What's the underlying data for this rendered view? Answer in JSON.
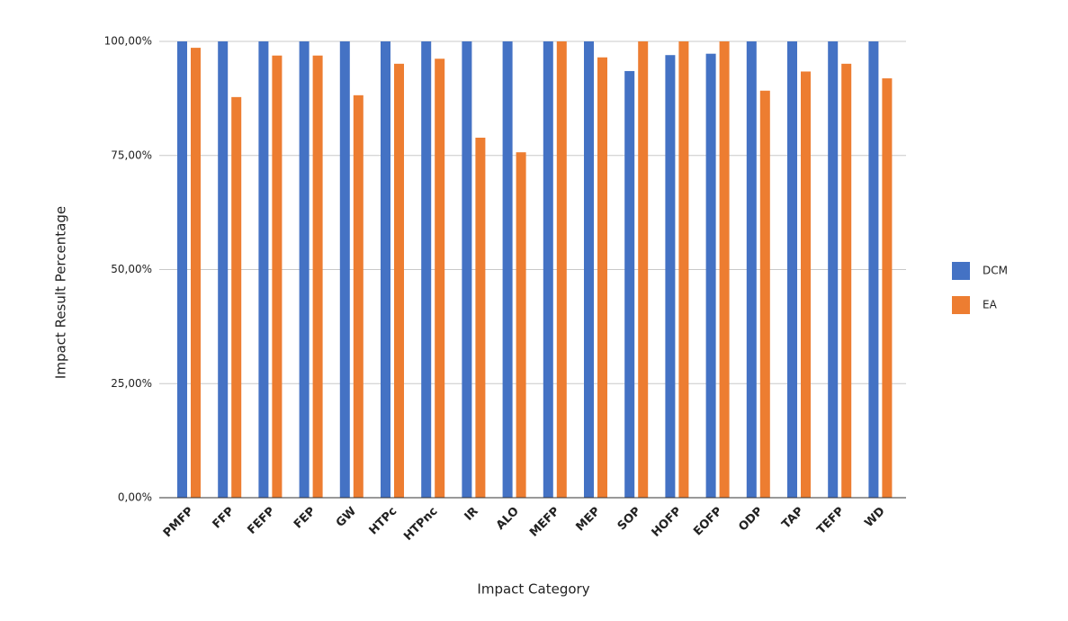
{
  "chart_data": {
    "type": "bar",
    "x_label": "Impact Category",
    "y_label": "Impact Result Percentage",
    "categories": [
      "PMFP",
      "FFP",
      "FEFP",
      "FEP",
      "GW",
      "HTPc",
      "HTPnc",
      "IR",
      "ALO",
      "MEFP",
      "MEP",
      "SOP",
      "HOFP",
      "EOFP",
      "ODP",
      "TAP",
      "TEFP",
      "WD"
    ],
    "series": [
      {
        "name": "DCM",
        "color": "#4472c4",
        "values": [
          100,
          100,
          100,
          100,
          100,
          100,
          100,
          100,
          100,
          100,
          100,
          93.5,
          97,
          97.3,
          100,
          100,
          100,
          100
        ]
      },
      {
        "name": "EA",
        "color": "#ed7d31",
        "values": [
          98.6,
          87.8,
          96.9,
          96.9,
          88.2,
          95.1,
          96.2,
          78.9,
          75.7,
          100,
          96.5,
          100,
          100,
          100,
          89.2,
          93.4,
          95.1,
          91.9
        ]
      }
    ],
    "ylim": [
      0,
      100
    ],
    "yticks": [
      {
        "value": 0,
        "label": "0,00%"
      },
      {
        "value": 25,
        "label": "25,00%"
      },
      {
        "value": 50,
        "label": "50,00%"
      },
      {
        "value": 75,
        "label": "75,00%"
      },
      {
        "value": 100,
        "label": "100,00%"
      }
    ],
    "grid": true,
    "legend": "right"
  }
}
